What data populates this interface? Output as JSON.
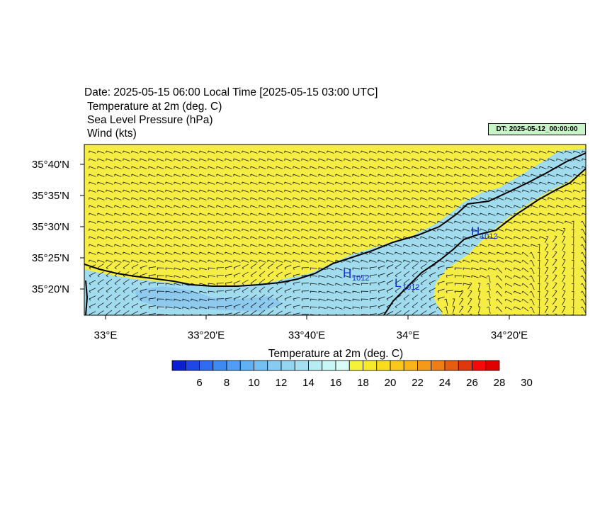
{
  "header": {
    "date_line": "Date: 2025-05-15  06:00 Local Time [2025-05-15  03:00 UTC]",
    "field1": "Temperature at 2m   (deg. C)",
    "field2": "Sea Level Pressure   (hPa)",
    "field3": "Wind   (kts)",
    "dt_badge": "DT: 2025-05-12_00:00:00"
  },
  "axes": {
    "lat_labels": [
      "35°40'N",
      "35°35'N",
      "35°30'N",
      "35°25'N",
      "35°20'N"
    ],
    "lon_labels": [
      "33°E",
      "33°20'E",
      "33°40'E",
      "34°E",
      "34°20'E"
    ]
  },
  "pressure_labels": [
    {
      "kind": "H",
      "value": "1012"
    },
    {
      "kind": "H",
      "value": "1012"
    },
    {
      "kind": "L",
      "value": "1012"
    }
  ],
  "colorbar": {
    "title": "Temperature at 2m  (deg. C)",
    "tick_labels": [
      "6",
      "8",
      "10",
      "12",
      "14",
      "16",
      "18",
      "20",
      "22",
      "24",
      "26",
      "28",
      "30"
    ],
    "colors": [
      "#0a1fd2",
      "#1f47e6",
      "#2f6cf0",
      "#3f8af2",
      "#4f9df5",
      "#5fb0f5",
      "#74c0f2",
      "#84ccf2",
      "#94d6f2",
      "#a4e0f2",
      "#b6ecf2",
      "#c8f6f4",
      "#d8fcf6",
      "#f4f33a",
      "#f8ea2a",
      "#f9dc1c",
      "#f9c81a",
      "#f8b418",
      "#f49a18",
      "#f07e16",
      "#e85c12",
      "#e0380e",
      "#f40a0a",
      "#e00000"
    ]
  },
  "colors": {
    "warm_fill": "#f5ed44",
    "cool_fill": "#a0dcee",
    "cooler_fill": "#8ec9ee",
    "coast": "#000000",
    "label_blue": "#1030e0"
  }
}
